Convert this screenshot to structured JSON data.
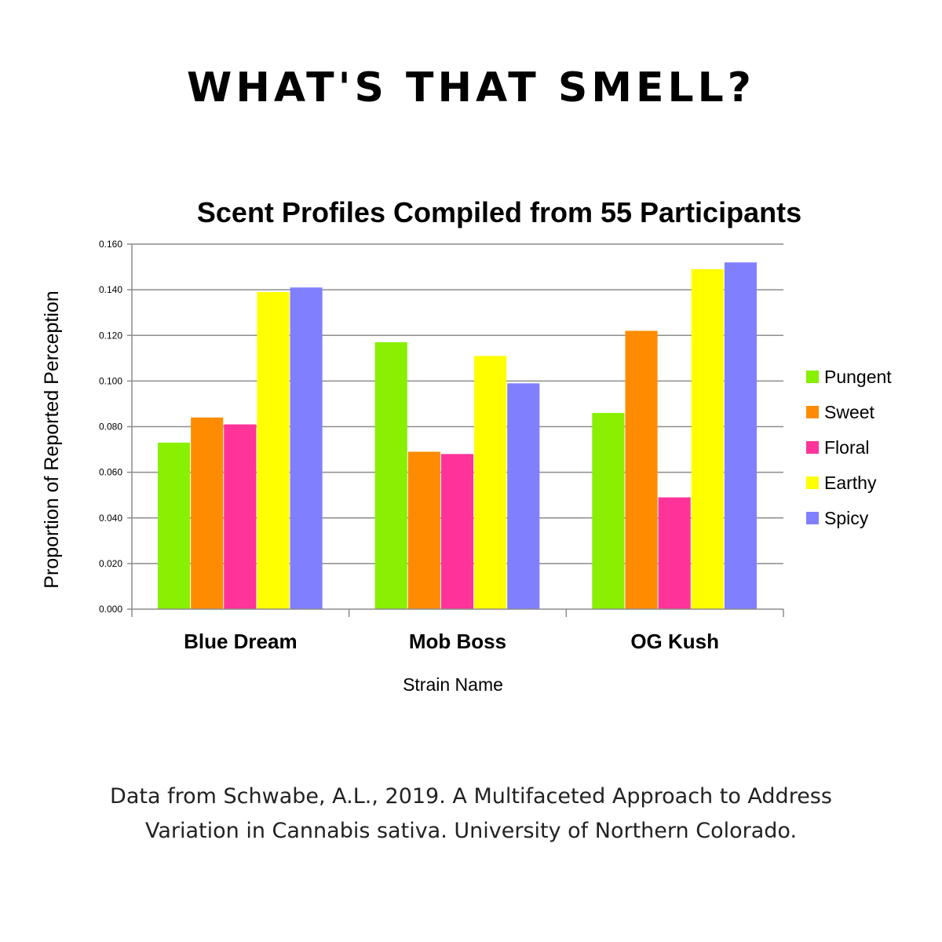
{
  "headline": "WHAT'S THAT SMELL?",
  "caption": {
    "line1": "Data from Schwabe, A.L., 2019. A Multifaceted Approach to Address",
    "line2": "Variation in Cannabis sativa. University of Northern Colorado."
  },
  "chart_data": {
    "type": "bar",
    "title": "Scent Profiles Compiled from 55 Participants",
    "xlabel": "Strain Name",
    "ylabel": "Proportion of Reported Perception",
    "categories": [
      "Blue Dream",
      "Mob Boss",
      "OG Kush"
    ],
    "ylim": [
      0,
      0.16
    ],
    "yticks": [
      "0.000",
      "0.020",
      "0.040",
      "0.060",
      "0.080",
      "0.100",
      "0.120",
      "0.140",
      "0.160"
    ],
    "grid": true,
    "legend_position": "right",
    "series": [
      {
        "name": "Pungent",
        "color": "#88f000",
        "values": [
          0.073,
          0.117,
          0.086
        ]
      },
      {
        "name": "Sweet",
        "color": "#ff8c00",
        "values": [
          0.084,
          0.069,
          0.122
        ]
      },
      {
        "name": "Floral",
        "color": "#ff3399",
        "values": [
          0.081,
          0.068,
          0.049
        ]
      },
      {
        "name": "Earthy",
        "color": "#ffff00",
        "values": [
          0.139,
          0.111,
          0.149
        ]
      },
      {
        "name": "Spicy",
        "color": "#8080ff",
        "values": [
          0.141,
          0.099,
          0.152
        ]
      }
    ]
  }
}
